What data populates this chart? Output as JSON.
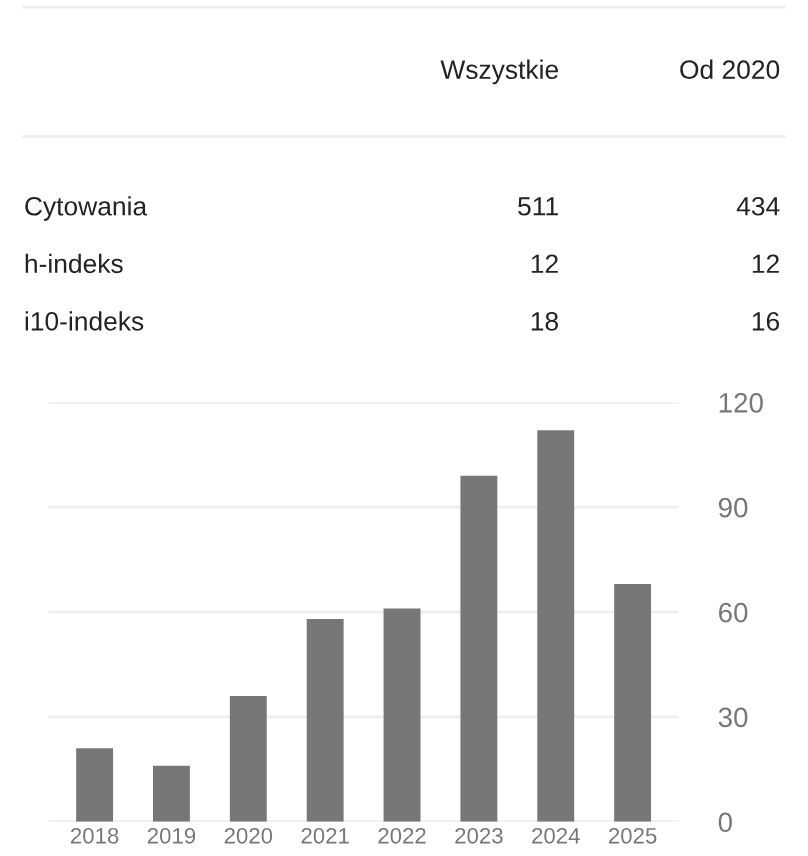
{
  "chart_data": [
    {
      "type": "other",
      "categories": [
        "Wszystkie",
        "Od 2020"
      ],
      "y_categories": [
        "Cytowania",
        "h-indeks",
        "i10-indeks"
      ],
      "cell_labels": [
        [
          "511",
          "434"
        ],
        [
          "12",
          "12"
        ],
        [
          "18",
          "16"
        ]
      ]
    },
    {
      "type": "bar",
      "categories": [
        "2018",
        "2019",
        "2020",
        "2021",
        "2022",
        "2023",
        "2024",
        "2025"
      ],
      "values": [
        21,
        16,
        36,
        58,
        61,
        99,
        112,
        68
      ],
      "color": "#777777",
      "ylim": [
        0,
        120
      ],
      "yticks": [
        0,
        30,
        60,
        90,
        120
      ],
      "grid": "y"
    }
  ]
}
